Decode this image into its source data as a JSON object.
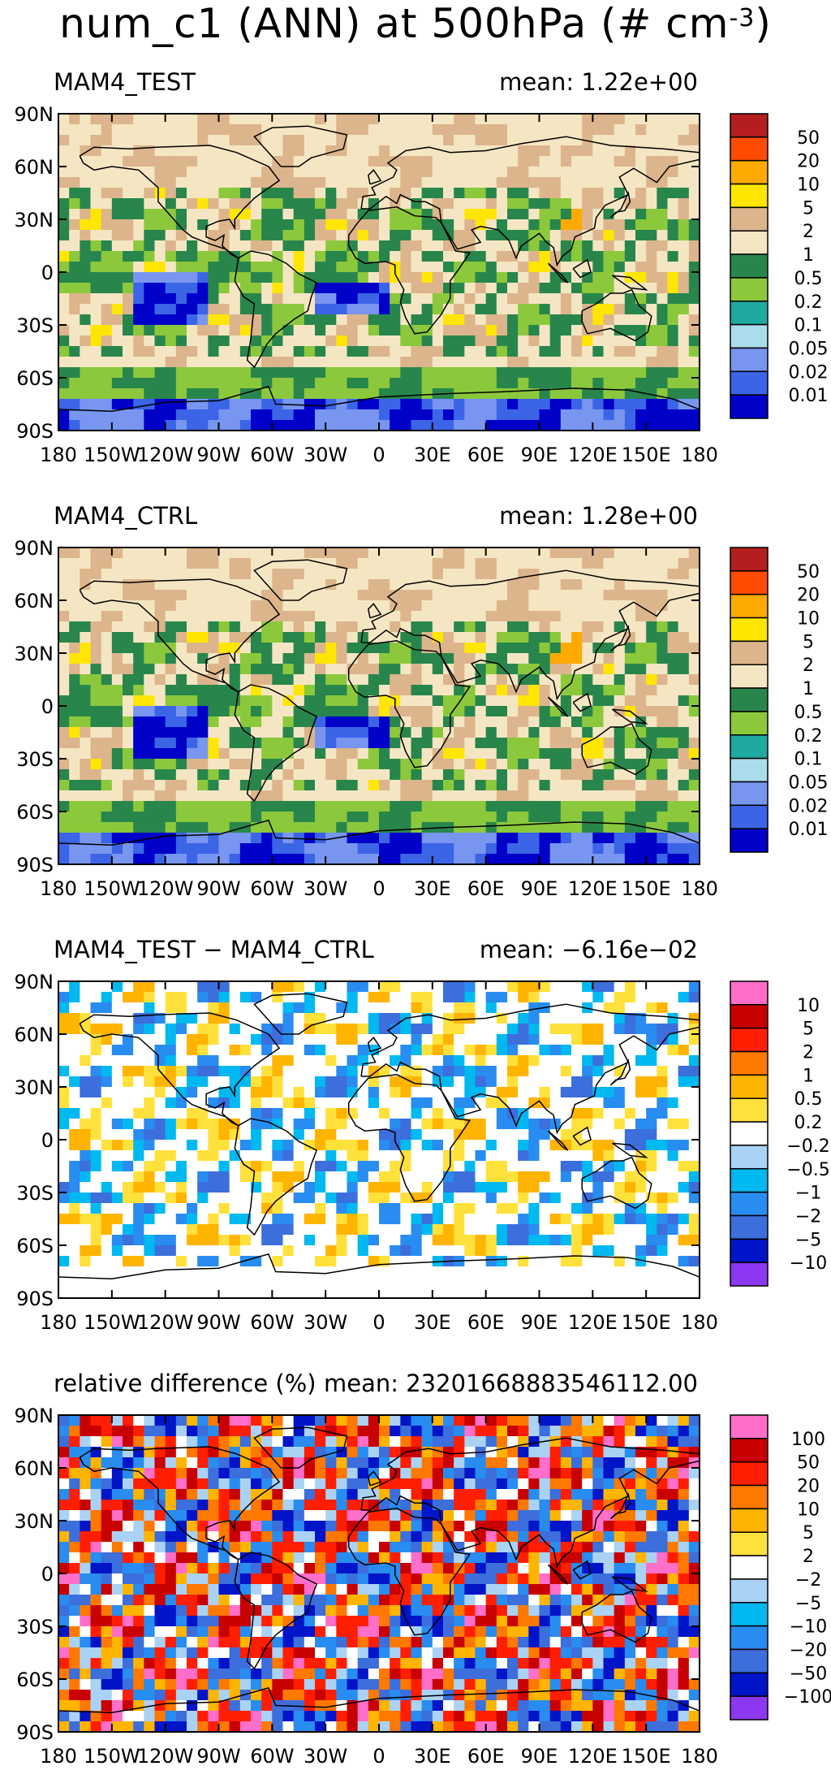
{
  "title": {
    "main": "num_c1 (ANN) at 500hPa (# cm",
    "exponent": "-3",
    "close": ")"
  },
  "axes": {
    "lat_ticks": [
      "90N",
      "60N",
      "30N",
      "0",
      "30S",
      "60S",
      "90S"
    ],
    "lon_ticks": [
      "180",
      "150W",
      "120W",
      "90W",
      "60W",
      "30W",
      "0",
      "30E",
      "60E",
      "90E",
      "120E",
      "150E",
      "180"
    ]
  },
  "colors": {
    "abs_palette": [
      "#0000c8",
      "#3c64e6",
      "#7896f0",
      "#aadcec",
      "#1eaaa0",
      "#8cc83c",
      "#28864c",
      "#f5e6c3",
      "#dcb58c",
      "#ffe600",
      "#ffaa00",
      "#ff4b00",
      "#b41e1e"
    ],
    "diff_palette": [
      "#8c37f0",
      "#0014c8",
      "#3c6edc",
      "#288cf0",
      "#00b9f0",
      "#aad2f5",
      "#ffffff",
      "#ffe13c",
      "#ffb400",
      "#ff7800",
      "#ff1e00",
      "#c80000",
      "#ff6ec8"
    ]
  },
  "chart_data": [
    {
      "type": "heatmap",
      "title": "MAM4_TEST",
      "subtitle": "mean:  1.22e+00",
      "variable": "num_c1 (ANN) at 500hPa (# cm-3)",
      "xlim": [
        -180,
        180
      ],
      "ylim": [
        -90,
        90
      ],
      "colorbar_labels": [
        "0.01",
        "0.02",
        "0.05",
        "0.1",
        "0.2",
        "0.5",
        "1",
        "2",
        "5",
        "10",
        "20",
        "50"
      ],
      "palette": "abs_palette"
    },
    {
      "type": "heatmap",
      "title": "MAM4_CTRL",
      "subtitle": "mean:  1.28e+00",
      "variable": "num_c1 (ANN) at 500hPa (# cm-3)",
      "xlim": [
        -180,
        180
      ],
      "ylim": [
        -90,
        90
      ],
      "colorbar_labels": [
        "0.01",
        "0.02",
        "0.05",
        "0.1",
        "0.2",
        "0.5",
        "1",
        "2",
        "5",
        "10",
        "20",
        "50"
      ],
      "palette": "abs_palette"
    },
    {
      "type": "heatmap",
      "title": "MAM4_TEST − MAM4_CTRL",
      "subtitle": "mean: −6.16e−02",
      "variable": "num_c1 (ANN) at 500hPa (# cm-3)",
      "xlim": [
        -180,
        180
      ],
      "ylim": [
        -90,
        90
      ],
      "colorbar_labels": [
        "−10",
        "−5",
        "−2",
        "−1",
        "−0.5",
        "−0.2",
        "0.2",
        "0.5",
        "1",
        "2",
        "5",
        "10"
      ],
      "palette": "diff_palette"
    },
    {
      "type": "heatmap",
      "title": "relative difference (%)",
      "subtitle": "mean:  23201668883546112.00",
      "variable": "num_c1 (ANN) at 500hPa",
      "xlim": [
        -180,
        180
      ],
      "ylim": [
        -90,
        90
      ],
      "colorbar_labels": [
        "−100",
        "−50",
        "−20",
        "−10",
        "−5",
        "−2",
        "2",
        "5",
        "10",
        "20",
        "50",
        "100"
      ],
      "palette": "diff_palette"
    }
  ]
}
